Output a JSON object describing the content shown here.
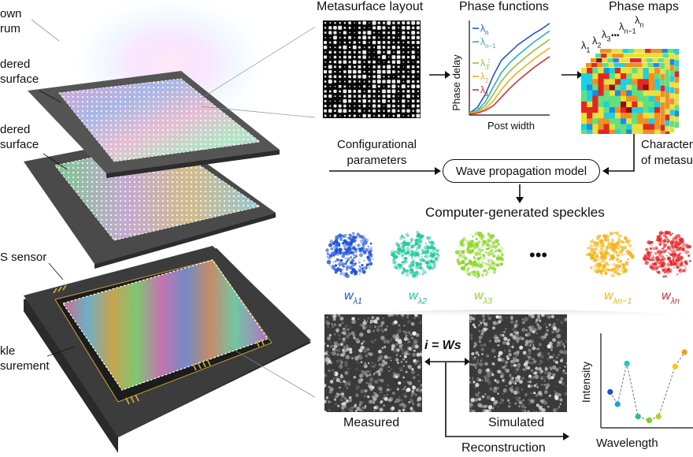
{
  "left_labels": {
    "spectrum": [
      "own",
      "rum"
    ],
    "top_meta": [
      "dered",
      "surface"
    ],
    "bottom_meta": [
      "dered",
      "surface"
    ],
    "sensor": "S sensor",
    "speckle": [
      "kle",
      "surement"
    ]
  },
  "titles": {
    "metasurface_layout": "Metasurface layout",
    "phase_functions": "Phase functions",
    "phase_maps": "Phase maps"
  },
  "phase_functions": {
    "ylabel": "Phase delay",
    "xlabel": "Post width",
    "legend": [
      {
        "main": "λ",
        "sub": "n",
        "color": "#2454d6"
      },
      {
        "main": "λ",
        "sub": "n−1",
        "color": "#22b3c8"
      },
      {
        "main": "λ",
        "sub": "3",
        "color": "#8cc43c"
      },
      {
        "main": "λ",
        "sub": "2",
        "color": "#f0b020"
      },
      {
        "main": "λ",
        "sub": "1",
        "color": "#e03030"
      }
    ],
    "curves": [
      {
        "color": "#2454d6",
        "points": [
          [
            0,
            0.02
          ],
          [
            0.1,
            0.08
          ],
          [
            0.2,
            0.22
          ],
          [
            0.3,
            0.42
          ],
          [
            0.4,
            0.58
          ],
          [
            0.5,
            0.66
          ],
          [
            0.6,
            0.74
          ],
          [
            0.7,
            0.8
          ],
          [
            0.8,
            0.86
          ],
          [
            0.9,
            0.91
          ],
          [
            1,
            0.97
          ]
        ]
      },
      {
        "color": "#22b3c8",
        "points": [
          [
            0,
            0.02
          ],
          [
            0.1,
            0.05
          ],
          [
            0.2,
            0.14
          ],
          [
            0.3,
            0.3
          ],
          [
            0.4,
            0.45
          ],
          [
            0.5,
            0.55
          ],
          [
            0.6,
            0.63
          ],
          [
            0.7,
            0.7
          ],
          [
            0.8,
            0.77
          ],
          [
            0.9,
            0.83
          ],
          [
            1,
            0.89
          ]
        ]
      },
      {
        "color": "#8cc43c",
        "points": [
          [
            0,
            0.02
          ],
          [
            0.1,
            0.04
          ],
          [
            0.2,
            0.1
          ],
          [
            0.3,
            0.22
          ],
          [
            0.4,
            0.36
          ],
          [
            0.5,
            0.46
          ],
          [
            0.6,
            0.54
          ],
          [
            0.7,
            0.61
          ],
          [
            0.8,
            0.68
          ],
          [
            0.9,
            0.74
          ],
          [
            1,
            0.8
          ]
        ]
      },
      {
        "color": "#f0b020",
        "points": [
          [
            0,
            0.02
          ],
          [
            0.1,
            0.03
          ],
          [
            0.2,
            0.07
          ],
          [
            0.3,
            0.15
          ],
          [
            0.4,
            0.27
          ],
          [
            0.5,
            0.37
          ],
          [
            0.6,
            0.45
          ],
          [
            0.7,
            0.52
          ],
          [
            0.8,
            0.59
          ],
          [
            0.9,
            0.65
          ],
          [
            1,
            0.71
          ]
        ]
      },
      {
        "color": "#e03030",
        "points": [
          [
            0,
            0.01
          ],
          [
            0.1,
            0.02
          ],
          [
            0.2,
            0.05
          ],
          [
            0.3,
            0.1
          ],
          [
            0.4,
            0.19
          ],
          [
            0.5,
            0.28
          ],
          [
            0.6,
            0.36
          ],
          [
            0.7,
            0.43
          ],
          [
            0.8,
            0.5
          ],
          [
            0.9,
            0.56
          ],
          [
            1,
            0.62
          ]
        ]
      }
    ]
  },
  "phase_map_labels": [
    {
      "main": "λ",
      "sub": "1"
    },
    {
      "main": "λ",
      "sub": "2"
    },
    {
      "main": "λ",
      "sub": "3"
    },
    {
      "main": "λ",
      "sub": "n−1"
    },
    {
      "main": "λ",
      "sub": "n"
    }
  ],
  "ellipsis": "•••",
  "config_params": [
    "Configurational",
    "parameters"
  ],
  "model_box": "Wave propagation model",
  "characterization": [
    "Character",
    "of metasu"
  ],
  "speckles_title": "Computer-generated speckles",
  "speckles": [
    {
      "main": "w",
      "sub": "λ1",
      "color": "#1a4fd8"
    },
    {
      "main": "w",
      "sub": "λ2",
      "color": "#1ec89a"
    },
    {
      "main": "w",
      "sub": "λ3",
      "color": "#8cd624"
    },
    {
      "main": "w",
      "sub": "λn−1",
      "color": "#f2b416"
    },
    {
      "main": "w",
      "sub": "λn",
      "color": "#e8262a"
    }
  ],
  "speckle_ellipsis": "•••",
  "equation": "i = Ws",
  "measured_label": "Measured",
  "simulated_label": "Simulated",
  "reconstruction_label": "Reconstruction",
  "spectrum_plot": {
    "ylabel": "Intensity",
    "xlabel": "Wavelength",
    "points": [
      {
        "x": 0.1,
        "y": 0.38,
        "color": "#1a4fd8"
      },
      {
        "x": 0.18,
        "y": 0.25,
        "color": "#1aa0e0"
      },
      {
        "x": 0.28,
        "y": 0.68,
        "color": "#22c8c8"
      },
      {
        "x": 0.4,
        "y": 0.12,
        "color": "#1ec87a"
      },
      {
        "x": 0.52,
        "y": 0.08,
        "color": "#6cd624"
      },
      {
        "x": 0.62,
        "y": 0.12,
        "color": "#a8d824"
      },
      {
        "x": 0.8,
        "y": 0.65,
        "color": "#f2c816"
      },
      {
        "x": 0.9,
        "y": 0.8,
        "color": "#f2a016"
      }
    ]
  }
}
